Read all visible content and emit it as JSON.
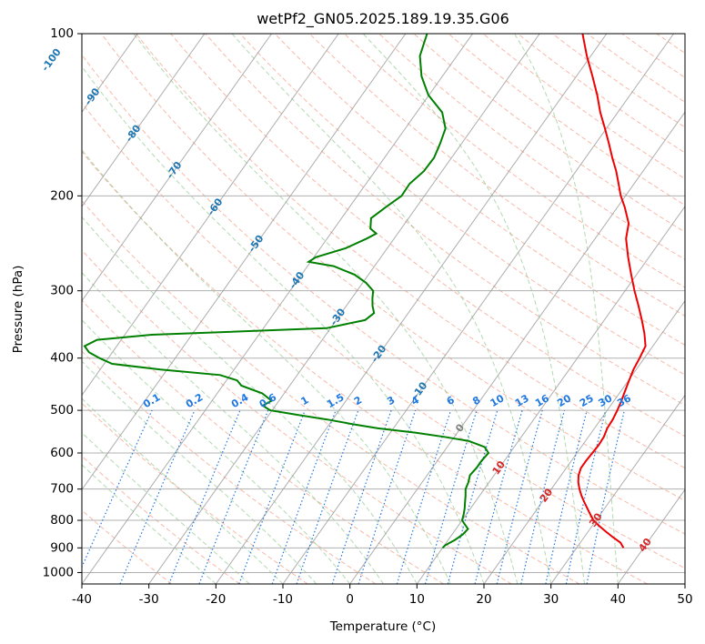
{
  "chart_data": {
    "type": "line",
    "title": "wetPf2_GN05.2025.189.19.35.G06",
    "xlabel": "Temperature (°C)",
    "ylabel": "Pressure (hPa)",
    "xlim": [
      -40,
      50
    ],
    "ylim": [
      1050,
      100
    ],
    "y_scale": "log",
    "grid": true,
    "x_ticks": [
      -40,
      -30,
      -20,
      -10,
      0,
      10,
      20,
      30,
      40,
      50
    ],
    "y_ticks": [
      100,
      200,
      300,
      400,
      500,
      600,
      700,
      800,
      900,
      1000
    ],
    "colors": {
      "temperature": "#ee0000",
      "dewpoint": "#008000",
      "isotherms": "#999999",
      "dry_adiabats": "#f08060",
      "moist_adiabats": "#7fbf7f",
      "mixing_ratio": "#1f77e0",
      "isotherm_labels": "#1f77b4",
      "warm_labels": "#d62728"
    },
    "series": [
      {
        "key": "temperature",
        "values": [
          {
            "p": 900,
            "t": 37.0
          },
          {
            "p": 880,
            "t": 36.0
          },
          {
            "p": 860,
            "t": 34.3
          },
          {
            "p": 840,
            "t": 32.7
          },
          {
            "p": 820,
            "t": 31.1
          },
          {
            "p": 800,
            "t": 29.6
          },
          {
            "p": 780,
            "t": 28.5
          },
          {
            "p": 760,
            "t": 27.4
          },
          {
            "p": 740,
            "t": 26.3
          },
          {
            "p": 720,
            "t": 25.2
          },
          {
            "p": 700,
            "t": 24.2
          },
          {
            "p": 680,
            "t": 23.3
          },
          {
            "p": 660,
            "t": 22.6
          },
          {
            "p": 640,
            "t": 22.2
          },
          {
            "p": 620,
            "t": 22.2
          },
          {
            "p": 600,
            "t": 22.3
          },
          {
            "p": 580,
            "t": 22.4
          },
          {
            "p": 560,
            "t": 22.3
          },
          {
            "p": 540,
            "t": 21.9
          },
          {
            "p": 520,
            "t": 21.8
          },
          {
            "p": 500,
            "t": 21.5
          },
          {
            "p": 480,
            "t": 21.1
          },
          {
            "p": 460,
            "t": 20.6
          },
          {
            "p": 440,
            "t": 20.1
          },
          {
            "p": 420,
            "t": 19.6
          },
          {
            "p": 400,
            "t": 19.3
          },
          {
            "p": 380,
            "t": 18.9
          },
          {
            "p": 360,
            "t": 17.4
          },
          {
            "p": 340,
            "t": 15.6
          },
          {
            "p": 320,
            "t": 13.6
          },
          {
            "p": 300,
            "t": 11.4
          },
          {
            "p": 280,
            "t": 9.2
          },
          {
            "p": 260,
            "t": 6.9
          },
          {
            "p": 240,
            "t": 4.6
          },
          {
            "p": 225,
            "t": 3.4
          },
          {
            "p": 210,
            "t": 1.1
          },
          {
            "p": 200,
            "t": -0.7
          },
          {
            "p": 190,
            "t": -2.3
          },
          {
            "p": 180,
            "t": -4.0
          },
          {
            "p": 170,
            "t": -6.0
          },
          {
            "p": 160,
            "t": -8.0
          },
          {
            "p": 150,
            "t": -10.2
          },
          {
            "p": 140,
            "t": -12.6
          },
          {
            "p": 130,
            "t": -14.9
          },
          {
            "p": 120,
            "t": -17.6
          },
          {
            "p": 110,
            "t": -20.6
          },
          {
            "p": 100,
            "t": -23.6
          }
        ]
      },
      {
        "key": "dewpoint",
        "values": [
          {
            "p": 900,
            "t": 10.0
          },
          {
            "p": 890,
            "t": 10.1
          },
          {
            "p": 870,
            "t": 11.0
          },
          {
            "p": 850,
            "t": 11.6
          },
          {
            "p": 830,
            "t": 11.8
          },
          {
            "p": 815,
            "t": 10.9
          },
          {
            "p": 800,
            "t": 10.0
          },
          {
            "p": 780,
            "t": 9.6
          },
          {
            "p": 760,
            "t": 9.1
          },
          {
            "p": 740,
            "t": 8.5
          },
          {
            "p": 720,
            "t": 7.9
          },
          {
            "p": 700,
            "t": 7.2
          },
          {
            "p": 680,
            "t": 6.9
          },
          {
            "p": 660,
            "t": 6.4
          },
          {
            "p": 640,
            "t": 6.6
          },
          {
            "p": 620,
            "t": 6.6
          },
          {
            "p": 600,
            "t": 6.8
          },
          {
            "p": 585,
            "t": 5.6
          },
          {
            "p": 570,
            "t": 2.6
          },
          {
            "p": 560,
            "t": -1.5
          },
          {
            "p": 550,
            "t": -6.3
          },
          {
            "p": 540,
            "t": -12.3
          },
          {
            "p": 530,
            "t": -16.7
          },
          {
            "p": 520,
            "t": -20.8
          },
          {
            "p": 510,
            "t": -25.6
          },
          {
            "p": 500,
            "t": -30.3
          },
          {
            "p": 490,
            "t": -31.9
          },
          {
            "p": 480,
            "t": -31.1
          },
          {
            "p": 465,
            "t": -33.3
          },
          {
            "p": 450,
            "t": -37.2
          },
          {
            "p": 440,
            "t": -38.4
          },
          {
            "p": 430,
            "t": -41.5
          },
          {
            "p": 420,
            "t": -51.0
          },
          {
            "p": 410,
            "t": -58.8
          },
          {
            "p": 400,
            "t": -61.3
          },
          {
            "p": 390,
            "t": -63.5
          },
          {
            "p": 380,
            "t": -64.8
          },
          {
            "p": 370,
            "t": -63.6
          },
          {
            "p": 362,
            "t": -56.0
          },
          {
            "p": 352,
            "t": -30.6
          },
          {
            "p": 340,
            "t": -25.7
          },
          {
            "p": 330,
            "t": -25.1
          },
          {
            "p": 320,
            "t": -26.1
          },
          {
            "p": 310,
            "t": -26.9
          },
          {
            "p": 300,
            "t": -27.6
          },
          {
            "p": 290,
            "t": -29.5
          },
          {
            "p": 280,
            "t": -32.1
          },
          {
            "p": 270,
            "t": -36.1
          },
          {
            "p": 265,
            "t": -40.3
          },
          {
            "p": 260,
            "t": -39.7
          },
          {
            "p": 250,
            "t": -36.2
          },
          {
            "p": 240,
            "t": -34.1
          },
          {
            "p": 235,
            "t": -33.2
          },
          {
            "p": 230,
            "t": -34.6
          },
          {
            "p": 220,
            "t": -35.6
          },
          {
            "p": 210,
            "t": -34.6
          },
          {
            "p": 200,
            "t": -33.4
          },
          {
            "p": 190,
            "t": -33.5
          },
          {
            "p": 180,
            "t": -32.7
          },
          {
            "p": 170,
            "t": -32.6
          },
          {
            "p": 160,
            "t": -33.2
          },
          {
            "p": 150,
            "t": -34.0
          },
          {
            "p": 140,
            "t": -36.2
          },
          {
            "p": 130,
            "t": -40.1
          },
          {
            "p": 120,
            "t": -43.1
          },
          {
            "p": 110,
            "t": -45.5
          },
          {
            "p": 100,
            "t": -46.8
          }
        ]
      }
    ],
    "isotherm_labels": [
      "-100",
      "-90",
      "-80",
      "-70",
      "-60",
      "-50",
      "-40",
      "-30",
      "-20",
      "-10"
    ],
    "zero_label": "0",
    "warm_labels": [
      "10",
      "20",
      "30",
      "40"
    ],
    "mixing_ratio_labels": [
      "0.1",
      "0.2",
      "0.4",
      "0.6",
      "1",
      "1.5",
      "2",
      "3",
      "4",
      "6",
      "8",
      "10",
      "13",
      "16",
      "20",
      "25",
      "30",
      "36"
    ]
  }
}
